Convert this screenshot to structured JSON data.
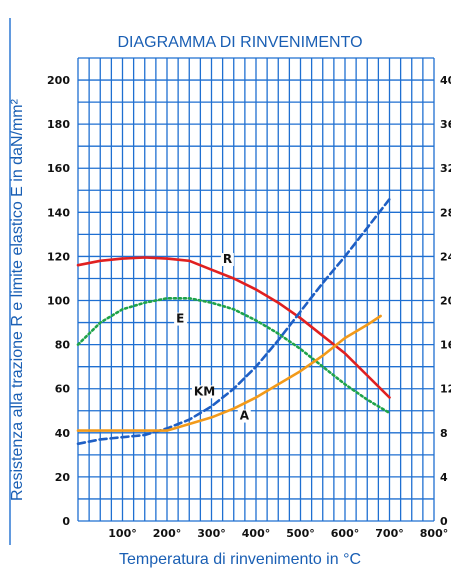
{
  "chart_data": {
    "type": "line",
    "title": "DIAGRAMMA DI RINVENIMENTO",
    "xlabel": "Temperatura di rinvenimento in °C",
    "ylabel": "Resistenza alla trazione R e limite elastico E in daN/mm²",
    "xlim": [
      0,
      800
    ],
    "ylim": [
      0,
      210
    ],
    "y2lim": [
      0,
      42
    ],
    "grid": true,
    "x_ticks": [
      {
        "value": 100,
        "label": "100°"
      },
      {
        "value": 200,
        "label": "200°"
      },
      {
        "value": 300,
        "label": "300°"
      },
      {
        "value": 400,
        "label": "400°"
      },
      {
        "value": 500,
        "label": "500°"
      },
      {
        "value": 600,
        "label": "600°"
      },
      {
        "value": 700,
        "label": "700°"
      },
      {
        "value": 800,
        "label": "800°"
      }
    ],
    "y_ticks": [
      {
        "value": 0,
        "label": "0"
      },
      {
        "value": 20,
        "label": "20"
      },
      {
        "value": 40,
        "label": "40"
      },
      {
        "value": 60,
        "label": "60"
      },
      {
        "value": 80,
        "label": "80"
      },
      {
        "value": 100,
        "label": "100"
      },
      {
        "value": 120,
        "label": "120"
      },
      {
        "value": 140,
        "label": "140"
      },
      {
        "value": 160,
        "label": "160"
      },
      {
        "value": 180,
        "label": "180"
      },
      {
        "value": 200,
        "label": "200"
      }
    ],
    "y2_ticks": [
      {
        "value": 0,
        "label": "0"
      },
      {
        "value": 4,
        "label": "4"
      },
      {
        "value": 8,
        "label": "8"
      },
      {
        "value": 12,
        "label": "12"
      },
      {
        "value": 16,
        "label": "16"
      },
      {
        "value": 20,
        "label": "20"
      },
      {
        "value": 24,
        "label": "24"
      },
      {
        "value": 28,
        "label": "28"
      },
      {
        "value": 32,
        "label": "32"
      },
      {
        "value": 36,
        "label": "36"
      },
      {
        "value": 40,
        "label": "40"
      }
    ],
    "series": [
      {
        "name": "R",
        "color": "#e02020",
        "style": "solid",
        "x": [
          0,
          50,
          100,
          150,
          200,
          250,
          300,
          350,
          400,
          450,
          500,
          550,
          600,
          650,
          700
        ],
        "values": [
          116,
          118,
          119,
          119.5,
          119,
          118,
          114,
          110,
          105,
          99,
          92,
          84,
          76,
          66,
          56
        ]
      },
      {
        "name": "E",
        "color": "#1fa34a",
        "style": "dotted",
        "x": [
          0,
          50,
          100,
          150,
          200,
          250,
          300,
          350,
          400,
          450,
          500,
          550,
          600,
          650,
          700
        ],
        "values": [
          80,
          90,
          96,
          99,
          101,
          101,
          99,
          96,
          91,
          85,
          78,
          70,
          62,
          55,
          49
        ]
      },
      {
        "name": "KM",
        "color": "#1f5fc4",
        "style": "dashed",
        "x": [
          0,
          50,
          100,
          150,
          200,
          250,
          300,
          350,
          400,
          450,
          500,
          550,
          600,
          650,
          700
        ],
        "values": [
          35,
          37,
          38,
          39,
          42,
          46,
          52,
          60,
          70,
          82,
          95,
          108,
          120,
          133,
          146
        ]
      },
      {
        "name": "A",
        "color": "#f29a1a",
        "style": "solid",
        "x": [
          0,
          100,
          150,
          200,
          250,
          300,
          350,
          400,
          450,
          500,
          550,
          600,
          650,
          680
        ],
        "values": [
          41,
          41,
          41,
          41,
          44,
          47,
          51,
          56,
          62,
          68,
          75,
          83,
          89,
          93
        ]
      }
    ],
    "annotations": [
      {
        "text": "R",
        "x": 330,
        "y": 117
      },
      {
        "text": "E",
        "x": 225,
        "y": 90
      },
      {
        "text": "KM",
        "x": 265,
        "y": 57
      },
      {
        "text": "A",
        "x": 368,
        "y": 46
      }
    ]
  }
}
